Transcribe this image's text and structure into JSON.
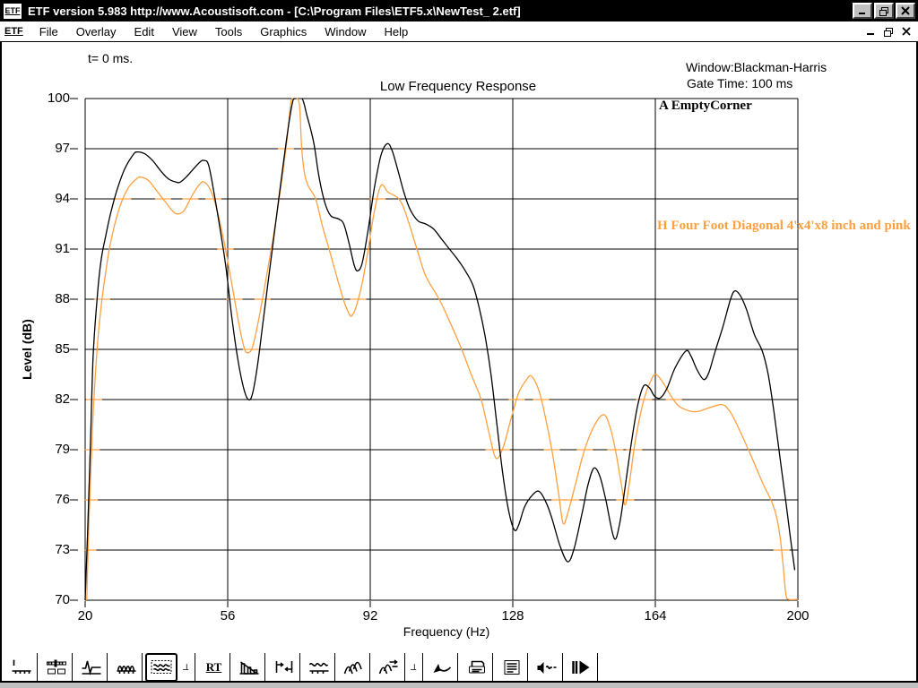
{
  "window": {
    "icon_text": "ETF",
    "title": "ETF version 5.983 http://www.Acoustisoft.com - [C:\\Program Files\\ETF5.x\\NewTest_ 2.etf]"
  },
  "menu": {
    "icon_text": "ETF",
    "items": [
      "File",
      "Overlay",
      "Edit",
      "View",
      "Tools",
      "Graphics",
      "Window",
      "Help"
    ]
  },
  "header": {
    "time_label": "t= 0 ms.",
    "window_label": "Window:Blackman-Harris",
    "gate_label": "Gate Time: 100 ms"
  },
  "chart_data": {
    "type": "line",
    "title": "Low Frequency Response",
    "xlabel": "Frequency (Hz)",
    "ylabel": "Level (dB)",
    "xlim": [
      20,
      200
    ],
    "ylim": [
      70,
      100
    ],
    "x_ticks": [
      20,
      56,
      92,
      128,
      164,
      200
    ],
    "y_ticks": [
      100,
      97,
      94,
      91,
      88,
      85,
      82,
      79,
      76,
      73,
      70
    ],
    "grid": true,
    "legend_position": "inside-top-right",
    "series": [
      {
        "name": "A EmptyCorner",
        "color": "#000000",
        "points": [
          [
            20,
            70
          ],
          [
            20.6,
            74
          ],
          [
            21.3,
            79
          ],
          [
            22,
            84.5
          ],
          [
            23,
            88
          ],
          [
            24,
            90.3
          ],
          [
            25.2,
            91.8
          ],
          [
            26.5,
            93.2
          ],
          [
            28,
            94.5
          ],
          [
            30,
            95.8
          ],
          [
            32,
            96.6
          ],
          [
            33,
            96.8
          ],
          [
            35,
            96.7
          ],
          [
            37,
            96.3
          ],
          [
            39,
            95.7
          ],
          [
            41,
            95.2
          ],
          [
            43,
            95.0
          ],
          [
            44,
            95.0
          ],
          [
            45.5,
            95.3
          ],
          [
            47,
            95.7
          ],
          [
            49,
            96.2
          ],
          [
            50,
            96.3
          ],
          [
            51.2,
            96.0
          ],
          [
            52.8,
            94.0
          ],
          [
            54,
            92.3
          ],
          [
            55.5,
            90.0
          ],
          [
            57,
            87.0
          ],
          [
            58.5,
            84.5
          ],
          [
            60,
            82.7
          ],
          [
            61.2,
            82.0
          ],
          [
            62.2,
            82.3
          ],
          [
            63.5,
            84.0
          ],
          [
            65,
            86.8
          ],
          [
            67,
            90.5
          ],
          [
            69,
            94.2
          ],
          [
            71,
            97.8
          ],
          [
            72.3,
            99.7
          ],
          [
            73,
            100
          ],
          [
            74.8,
            100
          ],
          [
            76,
            99.0
          ],
          [
            77.7,
            97.4
          ],
          [
            79,
            95.4
          ],
          [
            80.5,
            93.8
          ],
          [
            82,
            93.0
          ],
          [
            84,
            92.8
          ],
          [
            85.3,
            92.5
          ],
          [
            86.6,
            91.4
          ],
          [
            88,
            90.0
          ],
          [
            88.9,
            89.7
          ],
          [
            90,
            90.2
          ],
          [
            91.5,
            92.2
          ],
          [
            93,
            94.6
          ],
          [
            94.7,
            96.6
          ],
          [
            96.3,
            97.3
          ],
          [
            97.5,
            96.9
          ],
          [
            99,
            95.7
          ],
          [
            100.5,
            94.4
          ],
          [
            102,
            93.4
          ],
          [
            104,
            92.7
          ],
          [
            106,
            92.5
          ],
          [
            108,
            92.2
          ],
          [
            110,
            91.6
          ],
          [
            112,
            91.0
          ],
          [
            114,
            90.4
          ],
          [
            116,
            89.7
          ],
          [
            118,
            88.8
          ],
          [
            119.6,
            87.4
          ],
          [
            121,
            85.8
          ],
          [
            122.5,
            83.5
          ],
          [
            124,
            80.5
          ],
          [
            125.5,
            77.5
          ],
          [
            127,
            75.3
          ],
          [
            128.4,
            74.2
          ],
          [
            129.5,
            74.5
          ],
          [
            131,
            75.6
          ],
          [
            133,
            76.3
          ],
          [
            134.7,
            76.5
          ],
          [
            136.5,
            75.8
          ],
          [
            138,
            74.8
          ],
          [
            140,
            73.2
          ],
          [
            141.9,
            72.3
          ],
          [
            143.5,
            73.1
          ],
          [
            145.5,
            75.2
          ],
          [
            147,
            76.9
          ],
          [
            148.5,
            77.9
          ],
          [
            150,
            77.4
          ],
          [
            151.5,
            76.0
          ],
          [
            153.6,
            73.7
          ],
          [
            155,
            74.6
          ],
          [
            156.5,
            77.0
          ],
          [
            158,
            79.5
          ],
          [
            159.5,
            81.6
          ],
          [
            161,
            82.8
          ],
          [
            162.5,
            82.7
          ],
          [
            163.8,
            82.2
          ],
          [
            165.3,
            82.1
          ],
          [
            167,
            82.7
          ],
          [
            169,
            83.9
          ],
          [
            171.7,
            84.9
          ],
          [
            173,
            84.6
          ],
          [
            174.5,
            83.8
          ],
          [
            176.2,
            83.2
          ],
          [
            177.5,
            83.6
          ],
          [
            179,
            84.8
          ],
          [
            181,
            86.3
          ],
          [
            183,
            88.0
          ],
          [
            184.1,
            88.5
          ],
          [
            185.5,
            88.2
          ],
          [
            187,
            87.4
          ],
          [
            189,
            85.9
          ],
          [
            191,
            84.9
          ],
          [
            192.5,
            83.5
          ],
          [
            194,
            81.2
          ],
          [
            195.5,
            78.5
          ],
          [
            197,
            75.8
          ],
          [
            198.2,
            73.6
          ],
          [
            199.2,
            71.8
          ]
        ]
      },
      {
        "name": "H Four Foot Diagonal 4'x4'x8 inch and pink",
        "color": "#FFA040",
        "gridline_cross_ticks": true,
        "points": [
          [
            20.4,
            70
          ],
          [
            21,
            75
          ],
          [
            22,
            81
          ],
          [
            23,
            85
          ],
          [
            24,
            87.5
          ],
          [
            25,
            89.3
          ],
          [
            26.1,
            91.0
          ],
          [
            27.5,
            92.5
          ],
          [
            29,
            93.7
          ],
          [
            31,
            94.7
          ],
          [
            33,
            95.2
          ],
          [
            34,
            95.3
          ],
          [
            36,
            95.1
          ],
          [
            38,
            94.5
          ],
          [
            40,
            93.9
          ],
          [
            42,
            93.3
          ],
          [
            43.3,
            93.1
          ],
          [
            45,
            93.3
          ],
          [
            47,
            94.2
          ],
          [
            49,
            94.9
          ],
          [
            50.1,
            95.0
          ],
          [
            51.5,
            94.6
          ],
          [
            53,
            93.6
          ],
          [
            54.5,
            92.1
          ],
          [
            56,
            90.3
          ],
          [
            57.5,
            88.3
          ],
          [
            59,
            86.3
          ],
          [
            60.3,
            85.0
          ],
          [
            61.2,
            84.8
          ],
          [
            62.2,
            85.1
          ],
          [
            63.5,
            86.4
          ],
          [
            65,
            88.3
          ],
          [
            67,
            91.0
          ],
          [
            69,
            94.0
          ],
          [
            70.8,
            97.2
          ],
          [
            71.8,
            99.5
          ],
          [
            72.3,
            100
          ],
          [
            73.6,
            100
          ],
          [
            74.2,
            99.4
          ],
          [
            74.7,
            97.0
          ],
          [
            75.5,
            95.4
          ],
          [
            76.5,
            94.7
          ],
          [
            78.2,
            94.0
          ],
          [
            80,
            92.3
          ],
          [
            81.6,
            91.0
          ],
          [
            83,
            89.8
          ],
          [
            85.2,
            88.0
          ],
          [
            86.5,
            87.2
          ],
          [
            87.3,
            87.0
          ],
          [
            88.5,
            87.6
          ],
          [
            90,
            89.0
          ],
          [
            91.5,
            91.0
          ],
          [
            93,
            93.2
          ],
          [
            94.7,
            94.8
          ],
          [
            96.5,
            94.4
          ],
          [
            99.2,
            94.0
          ],
          [
            101,
            93.1
          ],
          [
            103.8,
            91.0
          ],
          [
            106,
            89.4
          ],
          [
            109.4,
            88.0
          ],
          [
            112,
            86.7
          ],
          [
            115.1,
            85.0
          ],
          [
            117.5,
            83.5
          ],
          [
            120,
            82.0
          ],
          [
            122,
            80.0
          ],
          [
            123.7,
            78.5
          ],
          [
            125.5,
            79.1
          ],
          [
            127.5,
            80.8
          ],
          [
            129.5,
            82.4
          ],
          [
            131.5,
            83.2
          ],
          [
            132.7,
            83.4
          ],
          [
            134.5,
            82.6
          ],
          [
            136,
            81.2
          ],
          [
            138,
            78.8
          ],
          [
            139.5,
            76.5
          ],
          [
            140.7,
            74.6
          ],
          [
            142,
            75.3
          ],
          [
            144,
            77.1
          ],
          [
            146,
            78.9
          ],
          [
            148.5,
            80.4
          ],
          [
            150.9,
            81.1
          ],
          [
            152.5,
            80.4
          ],
          [
            154,
            78.9
          ],
          [
            155.5,
            76.8
          ],
          [
            156.4,
            75.7
          ],
          [
            157.5,
            77.1
          ],
          [
            159,
            79.6
          ],
          [
            161,
            81.9
          ],
          [
            163,
            83.2
          ],
          [
            164.2,
            83.5
          ],
          [
            166,
            83.0
          ],
          [
            168,
            82.2
          ],
          [
            170,
            81.6
          ],
          [
            172.9,
            81.3
          ],
          [
            175,
            81.3
          ],
          [
            177.5,
            81.5
          ],
          [
            180.8,
            81.7
          ],
          [
            182.5,
            81.4
          ],
          [
            184,
            80.8
          ],
          [
            186,
            79.8
          ],
          [
            187.5,
            79.0
          ],
          [
            189.5,
            77.9
          ],
          [
            191.5,
            76.8
          ],
          [
            193.2,
            76.0
          ],
          [
            194.5,
            75.1
          ],
          [
            195.5,
            73.8
          ],
          [
            196.3,
            72.0
          ],
          [
            197,
            70.3
          ],
          [
            197.8,
            70.05
          ],
          [
            200,
            70.05
          ]
        ]
      }
    ]
  },
  "toolbar": {
    "buttons": [
      {
        "name": "marker-scale-button",
        "icon": "marker"
      },
      {
        "name": "levels-button",
        "icon": "levels"
      },
      {
        "name": "impulse-response-button",
        "icon": "impulse"
      },
      {
        "name": "frequency-response-button",
        "icon": "humps"
      },
      {
        "name": "low-frequency-response-button",
        "icon": "lowfreq",
        "active": true
      },
      {
        "name": "axis-corner-button",
        "icon": "corner",
        "small": true
      },
      {
        "name": "rt-button",
        "icon": "rt",
        "label": "RT"
      },
      {
        "name": "energy-decay-button",
        "icon": "decay"
      },
      {
        "name": "gate-time-button",
        "icon": "gate"
      },
      {
        "name": "smoothed-response-button",
        "icon": "smooth"
      },
      {
        "name": "waterfall-button",
        "icon": "waterfall"
      },
      {
        "name": "waterfall-settings-button",
        "icon": "waterfall2"
      },
      {
        "name": "axis-corner-button-2",
        "icon": "corner",
        "small": true
      },
      {
        "name": "pointer-tool-button",
        "icon": "pointer"
      },
      {
        "name": "print-button",
        "icon": "print"
      },
      {
        "name": "notes-button",
        "icon": "notes"
      },
      {
        "name": "speaker-test-button",
        "icon": "speaker"
      },
      {
        "name": "play-button",
        "icon": "play"
      }
    ]
  }
}
